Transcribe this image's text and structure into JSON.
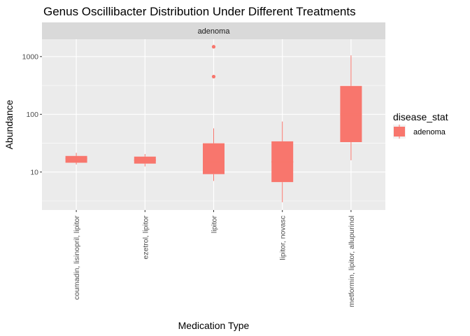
{
  "chart_data": {
    "type": "boxplot",
    "title": "Genus Oscillibacter Distribution Under Different Treatments",
    "facet_label": "adenoma",
    "xlabel": "Medication Type",
    "ylabel": "Abundance",
    "y_scale": "log10",
    "ylim": [
      2.2,
      2000
    ],
    "y_ticks": [
      10,
      100,
      1000
    ],
    "y_tick_labels": [
      "10",
      "100",
      "1000"
    ],
    "grid": true,
    "legend": {
      "title": "disease_stat",
      "position": "right",
      "entries": [
        {
          "label": "adenoma",
          "color": "#f8766d"
        }
      ]
    },
    "categories": [
      "coumadin, lisinopril, lipitor",
      "ezetrol, lipitor",
      "lipitor",
      "lipitor, novasc",
      "metformin, lipitor, allupurinol"
    ],
    "series": [
      {
        "name": "adenoma",
        "color": "#f8766d",
        "boxes": [
          {
            "whisker_low": 13.5,
            "q1": 14.5,
            "median": 17,
            "q3": 19,
            "whisker_high": 21.5,
            "outliers": []
          },
          {
            "whisker_low": 12.5,
            "q1": 14,
            "median": 16,
            "q3": 18.5,
            "whisker_high": 20.5,
            "outliers": []
          },
          {
            "whisker_low": 7,
            "q1": 9.2,
            "median": 15,
            "q3": 31.5,
            "whisker_high": 57,
            "outliers": [
              450,
              1480
            ]
          },
          {
            "whisker_low": 3,
            "q1": 6.7,
            "median": 15,
            "q3": 34,
            "whisker_high": 75,
            "outliers": []
          },
          {
            "whisker_low": 16,
            "q1": 33,
            "median": 100,
            "q3": 310,
            "whisker_high": 1050,
            "outliers": []
          }
        ]
      }
    ]
  }
}
